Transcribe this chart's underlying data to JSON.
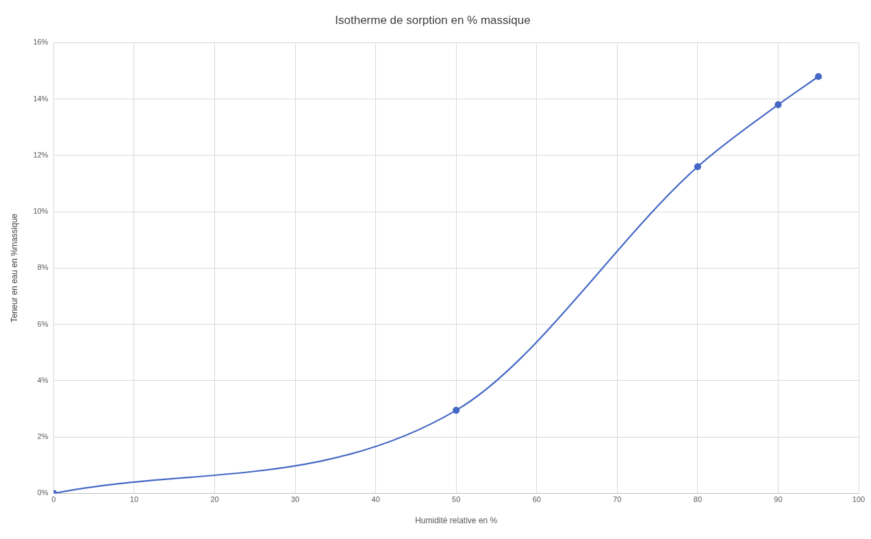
{
  "chart_data": {
    "type": "line",
    "title": "Isotherme de sorption en % massique",
    "xlabel": "Humidité relative en %",
    "ylabel": "Teneur en eau en %massique",
    "x": [
      0,
      50,
      80,
      90,
      95
    ],
    "series": [
      {
        "color": "#4468c4",
        "values": [
          0,
          2.95,
          11.6,
          13.8,
          14.8
        ]
      }
    ],
    "xlim": [
      0,
      100
    ],
    "xticks": [
      0,
      10,
      20,
      30,
      40,
      50,
      60,
      70,
      80,
      90,
      100
    ],
    "ylim": [
      0,
      16
    ],
    "yticks": [
      {
        "value": 0,
        "label": "0%"
      },
      {
        "value": 2,
        "label": "2%"
      },
      {
        "value": 4,
        "label": "4%"
      },
      {
        "value": 6,
        "label": "6%"
      },
      {
        "value": 8,
        "label": "8%"
      },
      {
        "value": 10,
        "label": "10%"
      },
      {
        "value": 12,
        "label": "12%"
      },
      {
        "value": 14,
        "label": "14%"
      },
      {
        "value": 16,
        "label": "16%"
      }
    ],
    "grid": true,
    "legend": false,
    "marker": "circle",
    "line_style": "solid"
  }
}
